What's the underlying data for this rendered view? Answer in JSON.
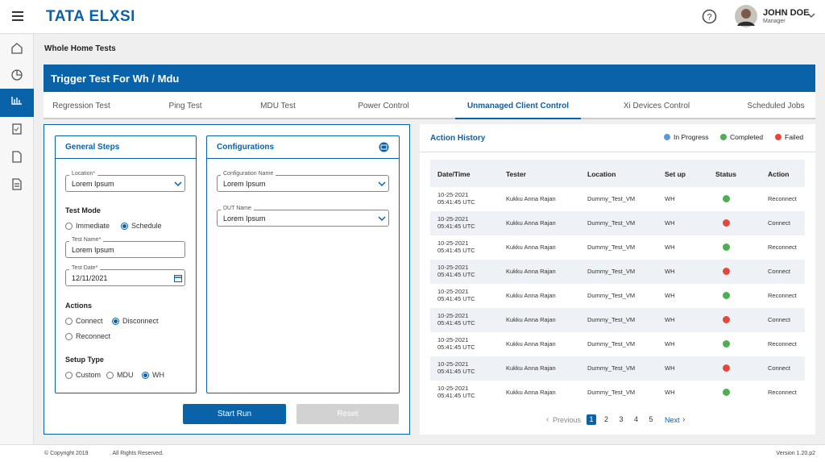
{
  "header": {
    "logo": "TATA ELXSI",
    "user_name": "JOHN DOE",
    "user_role": "Manager"
  },
  "breadcrumb": "Whole Home Tests",
  "banner": "Trigger Test For Wh / Mdu",
  "tabs": {
    "items": [
      "Regression Test",
      "Ping Test",
      "MDU Test",
      "Power Control",
      "Unmanaged Client Control",
      "Xi Devices Control",
      "Scheduled Jobs"
    ],
    "active": "Unmanaged Client Control"
  },
  "general_steps": {
    "title": "General Steps",
    "location": {
      "label": "Location",
      "required": "*",
      "value": "Lorem Ipsum"
    },
    "test_mode": {
      "title": "Test Mode",
      "options": [
        "Immediate",
        "Schedule"
      ],
      "selected": "Schedule"
    },
    "test_name": {
      "label": "Test Name*",
      "value": "Lorem Ipsum"
    },
    "test_date": {
      "label": "Test Date*",
      "value": "12/11/2021"
    },
    "actions": {
      "title": "Actions",
      "options": [
        "Connect",
        "Disconnect",
        "Reconnect"
      ],
      "selected": "Disconnect"
    },
    "setup_type": {
      "title": "Setup Type",
      "options": [
        "Custom",
        "MDU",
        "WH"
      ],
      "selected": "WH"
    }
  },
  "configurations": {
    "title": "Configurations",
    "configuration_name": {
      "label": "Configuration Name",
      "value": "Lorem Ipsum"
    },
    "dut_name": {
      "label": "DUT Name",
      "value": "Lorem Ipsum"
    }
  },
  "buttons": {
    "start": "Start Run",
    "reset": "Reset"
  },
  "action_history": {
    "title": "Action History",
    "legend": [
      {
        "name": "In Progress",
        "color": "#5b9bd5"
      },
      {
        "name": "Completed",
        "color": "#4caf50"
      },
      {
        "name": "Failed",
        "color": "#e5473c"
      }
    ],
    "columns": [
      "Date/Time",
      "Tester",
      "Location",
      "Set up",
      "Status",
      "Action"
    ],
    "rows": [
      {
        "date": "10-25-2021",
        "time": "05:41:45 UTC",
        "tester": "Kukku Anna Rajan",
        "location": "Dummy_Test_VM",
        "setup": "WH",
        "status": "Completed",
        "action": "Reconnect"
      },
      {
        "date": "10-25-2021",
        "time": "05:41:45 UTC",
        "tester": "Kukku Anna Rajan",
        "location": "Dummy_Test_VM",
        "setup": "WH",
        "status": "Failed",
        "action": "Connect"
      },
      {
        "date": "10-25-2021",
        "time": "05:41:45 UTC",
        "tester": "Kukku Anna Rajan",
        "location": "Dummy_Test_VM",
        "setup": "WH",
        "status": "Completed",
        "action": "Reconnect"
      },
      {
        "date": "10-25-2021",
        "time": "05:41:45 UTC",
        "tester": "Kukku Anna Rajan",
        "location": "Dummy_Test_VM",
        "setup": "WH",
        "status": "Failed",
        "action": "Connect"
      },
      {
        "date": "10-25-2021",
        "time": "05:41:45 UTC",
        "tester": "Kukku Anna Rajan",
        "location": "Dummy_Test_VM",
        "setup": "WH",
        "status": "Completed",
        "action": "Reconnect"
      },
      {
        "date": "10-25-2021",
        "time": "05:41:45 UTC",
        "tester": "Kukku Anna Rajan",
        "location": "Dummy_Test_VM",
        "setup": "WH",
        "status": "Failed",
        "action": "Connect"
      },
      {
        "date": "10-25-2021",
        "time": "05:41:45 UTC",
        "tester": "Kukku Anna Rajan",
        "location": "Dummy_Test_VM",
        "setup": "WH",
        "status": "Completed",
        "action": "Reconnect"
      },
      {
        "date": "10-25-2021",
        "time": "05:41:45 UTC",
        "tester": "Kukku Anna Rajan",
        "location": "Dummy_Test_VM",
        "setup": "WH",
        "status": "Failed",
        "action": "Connect"
      },
      {
        "date": "10-25-2021",
        "time": "05:41:45 UTC",
        "tester": "Kukku Anna Rajan",
        "location": "Dummy_Test_VM",
        "setup": "WH",
        "status": "Completed",
        "action": "Reconnect"
      }
    ],
    "pagination": {
      "previous": "Previous",
      "pages": [
        1,
        2,
        3,
        4,
        5
      ],
      "active": 1,
      "next": "Next"
    }
  },
  "footer": {
    "copyright": "© Copyright 2019",
    "rights": ". All Rights Reserved.",
    "version": "Version 1.20.p2"
  }
}
